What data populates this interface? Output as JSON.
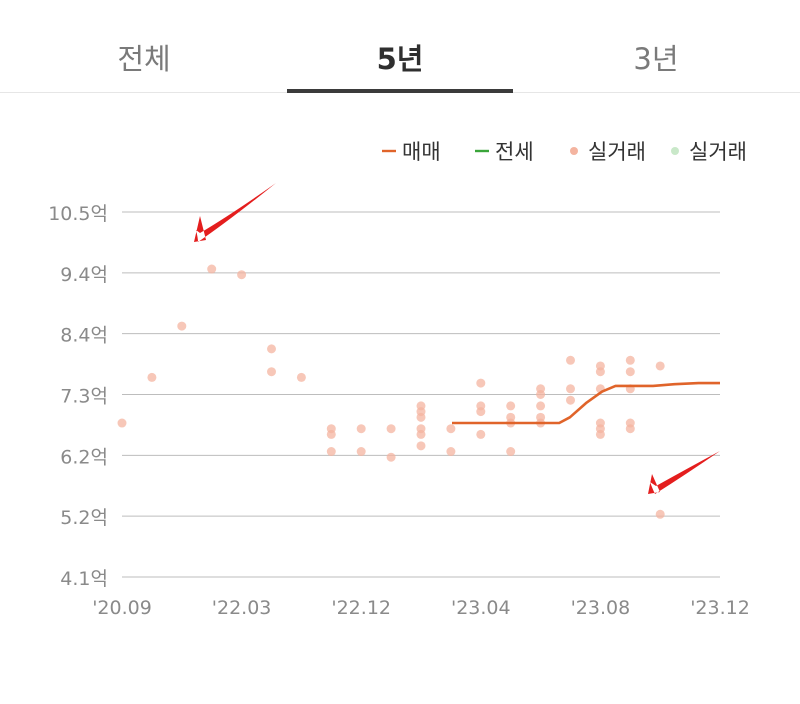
{
  "tabs": [
    {
      "label": "전체",
      "active": false
    },
    {
      "label": "5년",
      "active": true
    },
    {
      "label": "3년",
      "active": false
    }
  ],
  "colors": {
    "sale": "#e0642a",
    "jeonse": "#3aa53a",
    "sale_point": "#f4b4a0",
    "jeonse_point": "#c9e8c9",
    "grid": "#bdbdbd",
    "tick": "#8a8a8a",
    "annotation": "#e41e1e"
  },
  "chart_data": {
    "type": "line",
    "legend": {
      "position": "top-right",
      "items": [
        {
          "label": "매매",
          "kind": "line",
          "color": "#e0642a"
        },
        {
          "label": "전세",
          "kind": "line",
          "color": "#3aa53a"
        },
        {
          "label": "실거래",
          "kind": "dot",
          "color": "#f4b4a0"
        },
        {
          "label": "실거래",
          "kind": "dot",
          "color": "#c9e8c9"
        }
      ]
    },
    "yticks": [
      "10.5억",
      "9.4억",
      "8.4억",
      "7.3억",
      "6.2억",
      "5.2억",
      "4.1억"
    ],
    "ylim": [
      4.1,
      10.5
    ],
    "xticks": [
      "'20.09",
      "'22.03",
      "'22.12",
      "'23.04",
      "'23.08",
      "'23.12"
    ],
    "grid": true,
    "series": [
      {
        "name": "매매",
        "points": [
          [
            0.0,
            6.8
          ],
          [
            0.06,
            6.8
          ],
          [
            0.13,
            6.8
          ],
          [
            0.2,
            6.8
          ],
          [
            0.27,
            6.8
          ],
          [
            0.33,
            6.8
          ],
          [
            0.4,
            6.8
          ],
          [
            0.44,
            6.9
          ],
          [
            0.5,
            7.15
          ],
          [
            0.56,
            7.35
          ],
          [
            0.61,
            7.45
          ],
          [
            0.67,
            7.45
          ],
          [
            0.75,
            7.45
          ],
          [
            0.83,
            7.48
          ],
          [
            0.92,
            7.5
          ],
          [
            1.0,
            7.5
          ]
        ]
      }
    ],
    "sale_points": [
      [
        0.0,
        6.8
      ],
      [
        0.1,
        7.6
      ],
      [
        0.2,
        8.5
      ],
      [
        0.3,
        9.5
      ],
      [
        0.4,
        9.4
      ],
      [
        0.5,
        8.1
      ],
      [
        0.5,
        7.7
      ],
      [
        0.6,
        7.6
      ],
      [
        0.7,
        6.7
      ],
      [
        0.7,
        6.6
      ],
      [
        0.7,
        6.3
      ],
      [
        0.8,
        6.3
      ],
      [
        0.8,
        6.7
      ],
      [
        0.9,
        6.2
      ],
      [
        0.9,
        6.7
      ],
      [
        1.0,
        7.1
      ],
      [
        1.0,
        7.0
      ],
      [
        1.0,
        6.9
      ],
      [
        1.0,
        6.7
      ],
      [
        1.0,
        6.6
      ],
      [
        1.0,
        6.4
      ],
      [
        1.1,
        6.3
      ],
      [
        1.1,
        6.7
      ],
      [
        1.2,
        7.5
      ],
      [
        1.2,
        7.1
      ],
      [
        1.2,
        7.0
      ],
      [
        1.2,
        6.6
      ],
      [
        1.3,
        7.1
      ],
      [
        1.3,
        6.9
      ],
      [
        1.3,
        6.8
      ],
      [
        1.3,
        6.3
      ],
      [
        1.4,
        7.4
      ],
      [
        1.4,
        7.3
      ],
      [
        1.4,
        7.1
      ],
      [
        1.4,
        6.9
      ],
      [
        1.4,
        6.8
      ],
      [
        1.5,
        7.9
      ],
      [
        1.5,
        7.4
      ],
      [
        1.5,
        7.2
      ],
      [
        1.6,
        7.8
      ],
      [
        1.6,
        7.7
      ],
      [
        1.6,
        7.4
      ],
      [
        1.6,
        6.8
      ],
      [
        1.6,
        6.7
      ],
      [
        1.6,
        6.6
      ],
      [
        1.7,
        7.9
      ],
      [
        1.7,
        7.7
      ],
      [
        1.7,
        7.4
      ],
      [
        1.7,
        6.8
      ],
      [
        1.7,
        6.7
      ],
      [
        1.8,
        7.8
      ],
      [
        1.8,
        5.2
      ]
    ]
  }
}
